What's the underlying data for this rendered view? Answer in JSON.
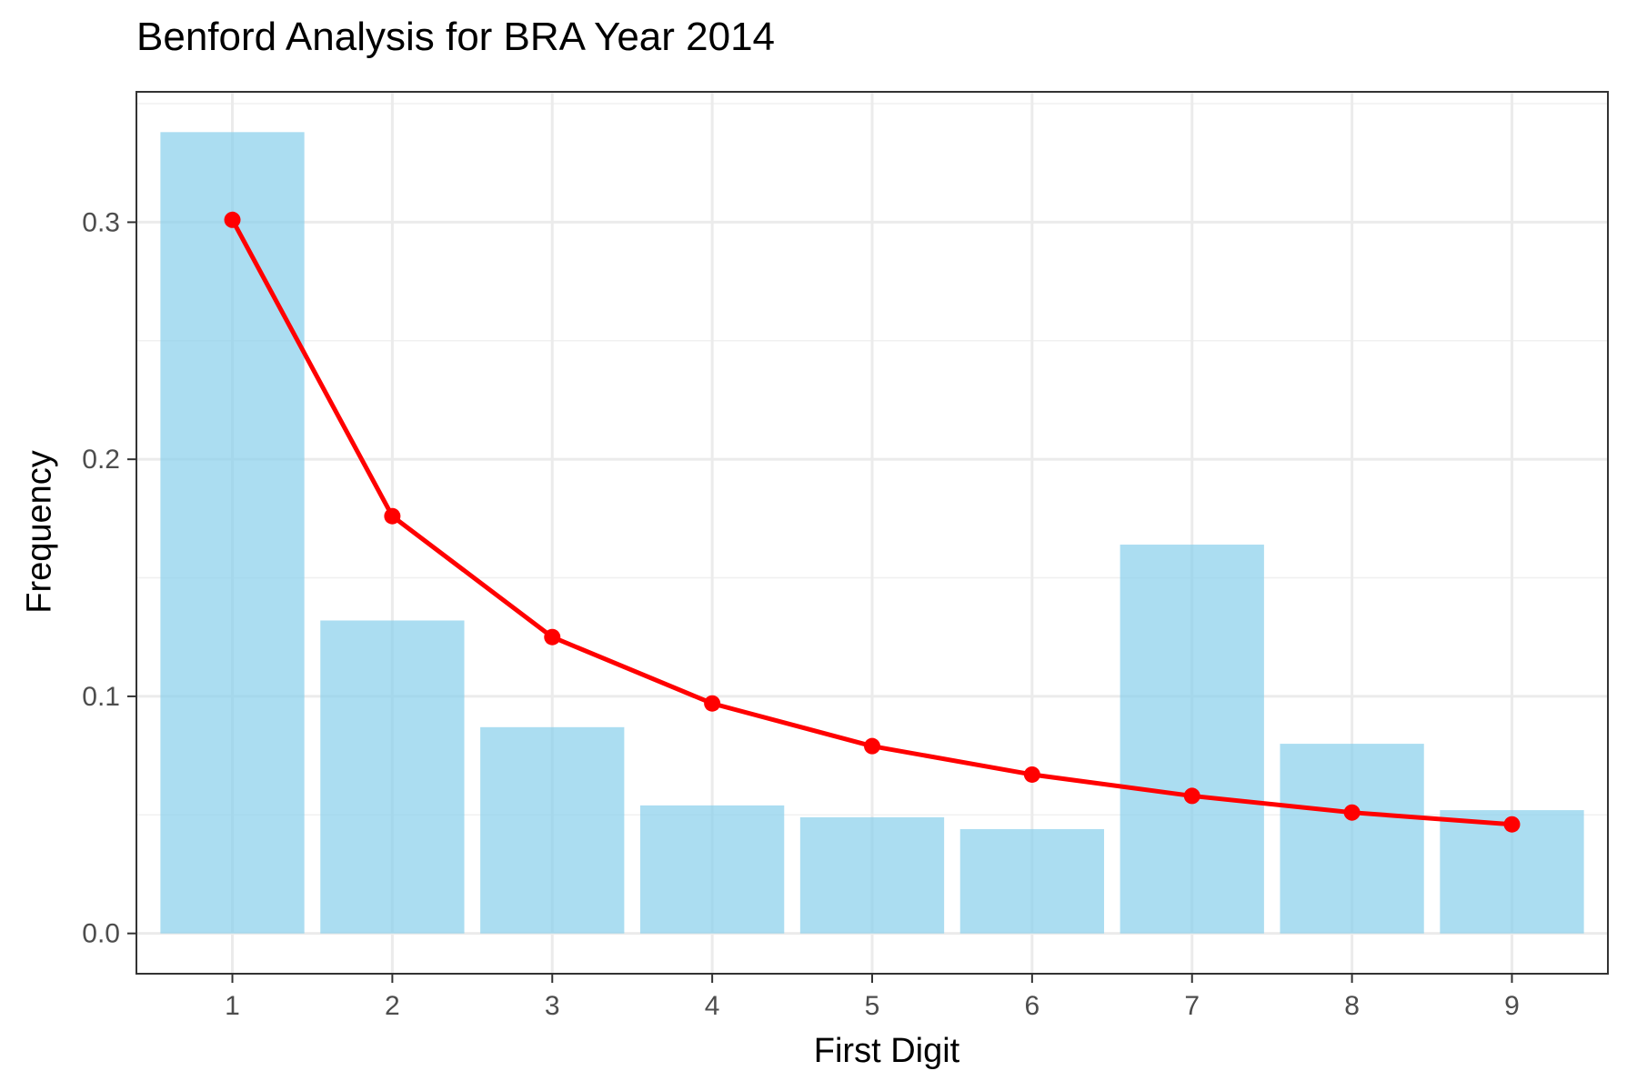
{
  "chart_data": {
    "type": "bar",
    "title": "Benford Analysis for BRA Year 2014",
    "xlabel": "First Digit",
    "ylabel": "Frequency",
    "categories": [
      "1",
      "2",
      "3",
      "4",
      "5",
      "6",
      "7",
      "8",
      "9"
    ],
    "series": [
      {
        "type": "bar",
        "values": [
          0.338,
          0.132,
          0.087,
          0.054,
          0.049,
          0.044,
          0.164,
          0.08,
          0.052
        ],
        "color": "#87ceeb"
      },
      {
        "type": "line",
        "values": [
          0.301,
          0.176,
          0.125,
          0.097,
          0.079,
          0.067,
          0.058,
          0.051,
          0.046
        ],
        "color": "#ff0000"
      }
    ],
    "yticks": [
      "0.0",
      "0.1",
      "0.2",
      "0.3"
    ],
    "ylim": [
      -0.017,
      0.355
    ],
    "grid": true,
    "legend": "none"
  }
}
